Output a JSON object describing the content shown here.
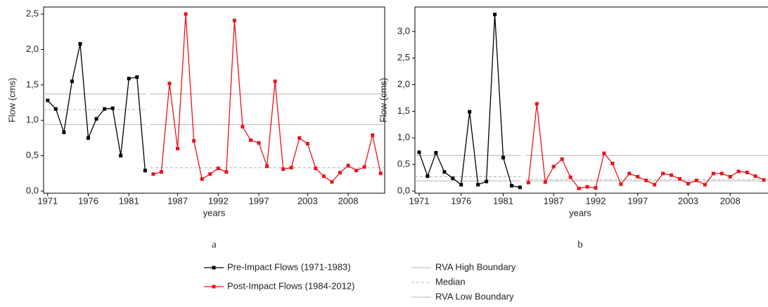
{
  "chart_data": [
    {
      "type": "line",
      "caption": "a",
      "x_label": "years",
      "y_label": "Flow (cms)",
      "x": [
        1971,
        1972,
        1973,
        1974,
        1975,
        1976,
        1977,
        1978,
        1979,
        1980,
        1981,
        1982,
        1983,
        1984,
        1985,
        1986,
        1987,
        1988,
        1989,
        1990,
        1991,
        1992,
        1993,
        1994,
        1995,
        1996,
        1997,
        1998,
        1999,
        2000,
        2001,
        2002,
        2003,
        2004,
        2005,
        2006,
        2007,
        2008,
        2009,
        2010,
        2011,
        2012
      ],
      "xlim": [
        1970.5,
        2012.5
      ],
      "xticks": [
        1971,
        1976,
        1981,
        1987,
        1992,
        1997,
        2003,
        2008
      ],
      "ylim": [
        -0.03,
        2.6
      ],
      "yticks": [
        {
          "value": 0,
          "label": "0,0"
        },
        {
          "value": 0.5,
          "label": "0,5"
        },
        {
          "value": 1,
          "label": "1,0"
        },
        {
          "value": 1.5,
          "label": "1,5"
        },
        {
          "value": 2,
          "label": "2,0"
        },
        {
          "value": 2.5,
          "label": "2,5"
        }
      ],
      "series": [
        {
          "name": "Pre-Impact Flows (1971-1983)",
          "color": "#000000",
          "values": [
            1.28,
            1.16,
            0.83,
            1.55,
            2.08,
            0.75,
            1.02,
            1.16,
            1.17,
            0.5,
            1.59,
            1.61,
            0.29,
            null,
            null,
            null,
            null,
            null,
            null,
            null,
            null,
            null,
            null,
            null,
            null,
            null,
            null,
            null,
            null,
            null,
            null,
            null,
            null,
            null,
            null,
            null,
            null,
            null,
            null,
            null,
            null,
            null
          ]
        },
        {
          "name": "Post-Impact Flows (1984-2012)",
          "color": "#e8141b",
          "values": [
            null,
            null,
            null,
            null,
            null,
            null,
            null,
            null,
            null,
            null,
            null,
            null,
            null,
            0.24,
            0.27,
            1.52,
            0.6,
            2.5,
            0.71,
            0.17,
            0.24,
            0.32,
            0.27,
            2.41,
            0.91,
            0.72,
            0.68,
            0.35,
            1.55,
            0.31,
            0.33,
            0.75,
            0.67,
            0.32,
            0.21,
            0.13,
            0.26,
            0.36,
            0.29,
            0.34,
            0.79,
            0.25
          ]
        }
      ],
      "reference_lines": [
        {
          "name": "RVA High Boundary",
          "color": "#b4b4b4",
          "dashed": false,
          "values": [
            1.37,
            1.37
          ]
        },
        {
          "name": "Median",
          "color": "#b4b4b4",
          "dashed": true,
          "values": [
            1.15,
            0.33
          ]
        },
        {
          "name": "RVA Low Boundary",
          "color": "#b4b4b4",
          "dashed": false,
          "values": [
            0.94,
            0.94
          ]
        }
      ]
    },
    {
      "type": "line",
      "caption": "b",
      "x_label": "years",
      "y_label": "Flow (cms)",
      "x": [
        1971,
        1972,
        1973,
        1974,
        1975,
        1976,
        1977,
        1978,
        1979,
        1980,
        1981,
        1982,
        1983,
        1984,
        1985,
        1986,
        1987,
        1988,
        1989,
        1990,
        1991,
        1992,
        1993,
        1994,
        1995,
        1996,
        1997,
        1998,
        1999,
        2000,
        2001,
        2002,
        2003,
        2004,
        2005,
        2006,
        2007,
        2008,
        2009,
        2010,
        2011,
        2012
      ],
      "xlim": [
        1970.5,
        2012.5
      ],
      "xticks": [
        1971,
        1976,
        1981,
        1987,
        1992,
        1997,
        2003,
        2008
      ],
      "ylim": [
        -0.04,
        3.46
      ],
      "yticks": [
        {
          "value": 0,
          "label": "0,0"
        },
        {
          "value": 0.5,
          "label": "0,5"
        },
        {
          "value": 1,
          "label": "1,0"
        },
        {
          "value": 1.5,
          "label": "1,5"
        },
        {
          "value": 2,
          "label": "2,0"
        },
        {
          "value": 2.5,
          "label": "2,5"
        },
        {
          "value": 3,
          "label": "3,0"
        }
      ],
      "series": [
        {
          "color": "#000000",
          "values": [
            0.73,
            0.28,
            0.72,
            0.36,
            0.24,
            0.12,
            1.49,
            0.12,
            0.18,
            3.32,
            0.63,
            0.1,
            0.07,
            null,
            null,
            null,
            null,
            null,
            null,
            null,
            null,
            null,
            null,
            null,
            null,
            null,
            null,
            null,
            null,
            null,
            null,
            null,
            null,
            null,
            null,
            null,
            null,
            null,
            null,
            null,
            null,
            null
          ]
        },
        {
          "color": "#e8141b",
          "values": [
            null,
            null,
            null,
            null,
            null,
            null,
            null,
            null,
            null,
            null,
            null,
            null,
            null,
            0.16,
            1.64,
            0.17,
            0.46,
            0.6,
            0.26,
            0.05,
            0.08,
            0.06,
            0.71,
            0.52,
            0.13,
            0.33,
            0.27,
            0.2,
            0.12,
            0.33,
            0.3,
            0.23,
            0.14,
            0.2,
            0.12,
            0.33,
            0.33,
            0.27,
            0.37,
            0.35,
            0.28,
            0.21
          ]
        }
      ],
      "reference_lines": [
        {
          "color": "#b4b4b4",
          "dashed": false,
          "values": [
            0.67,
            0.67
          ]
        },
        {
          "color": "#b4b4b4",
          "dashed": true,
          "values": [
            0.27,
            0.22
          ]
        },
        {
          "color": "#b4b4b4",
          "dashed": false,
          "values": [
            0.19,
            0.19
          ]
        }
      ]
    }
  ]
}
